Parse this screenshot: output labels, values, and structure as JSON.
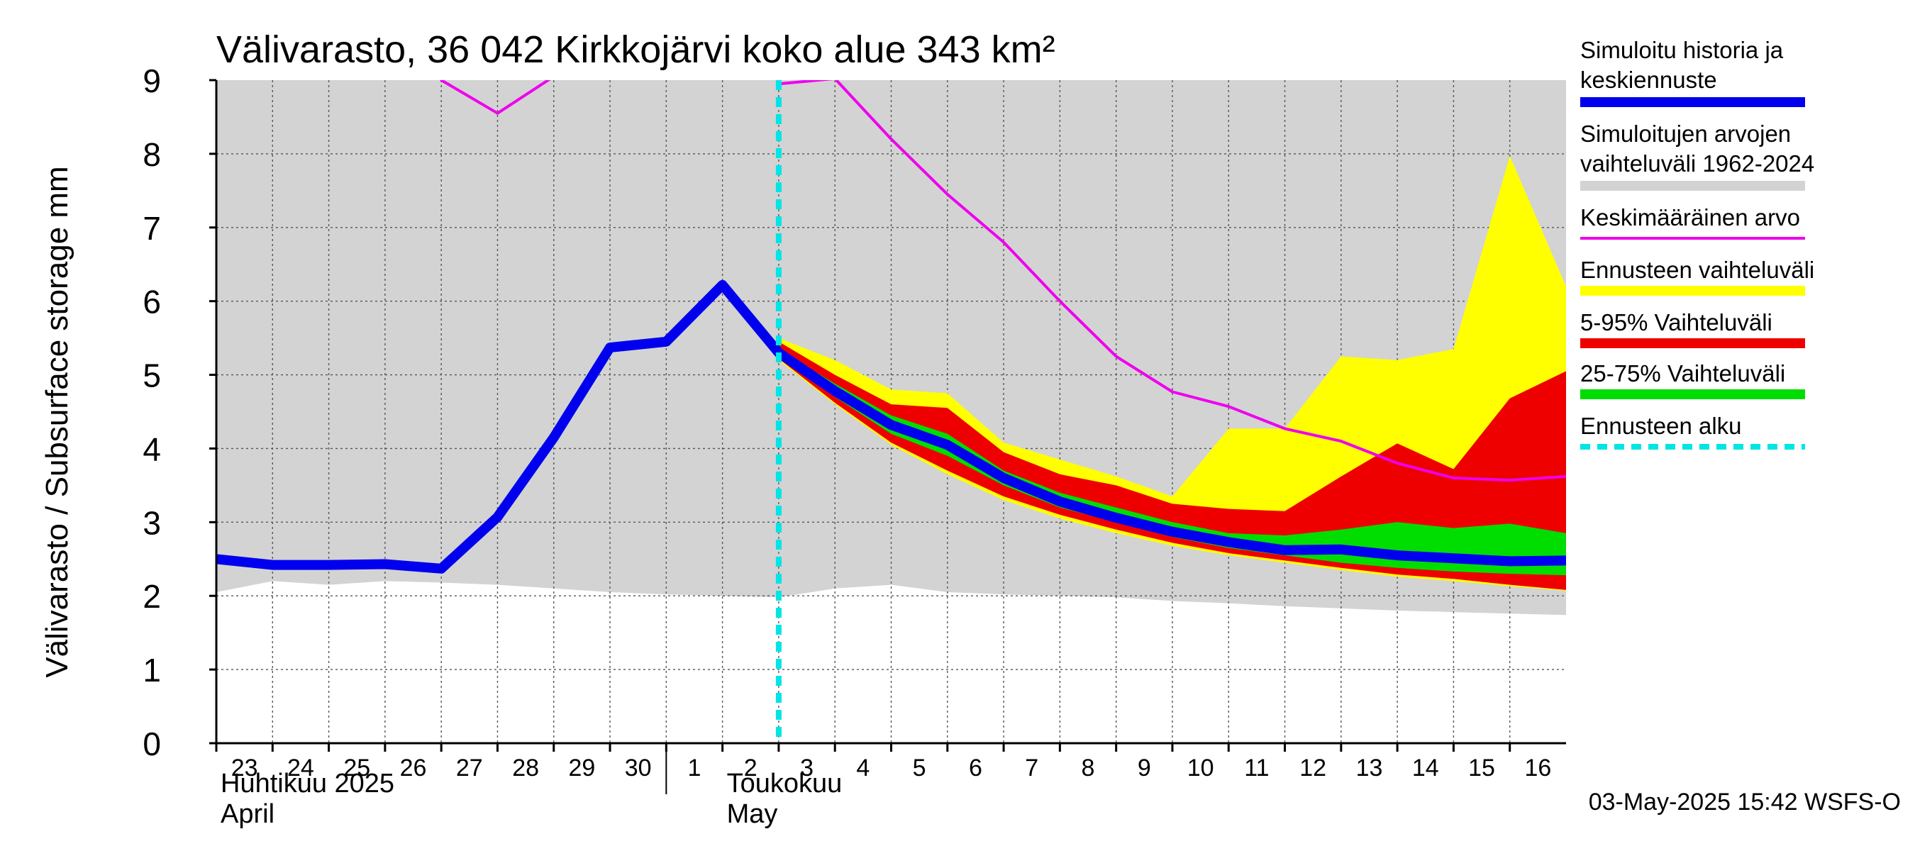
{
  "chart_data": {
    "type": "line",
    "title": "Välivarasto, 36 042 Kirkkojärvi koko alue 343 km²",
    "ylabel": "Välivarasto / Subsurface storage  mm",
    "ylim": [
      0,
      9
    ],
    "yticks": [
      "0",
      "1",
      "2",
      "3",
      "4",
      "5",
      "6",
      "7",
      "8",
      "9"
    ],
    "grid": true,
    "legend_position": "right",
    "xlim": [
      "2025-04-23",
      "2025-05-17"
    ],
    "x_tick_labels": [
      "23",
      "24",
      "25",
      "26",
      "27",
      "28",
      "29",
      "30",
      "1",
      "2",
      "3",
      "4",
      "5",
      "6",
      "7",
      "8",
      "9",
      "10",
      "11",
      "12",
      "13",
      "14",
      "15",
      "16"
    ],
    "x_tick_dates": [
      "2025-04-23",
      "2025-04-24",
      "2025-04-25",
      "2025-04-26",
      "2025-04-27",
      "2025-04-28",
      "2025-04-29",
      "2025-04-30",
      "2025-05-01",
      "2025-05-02",
      "2025-05-03",
      "2025-05-04",
      "2025-05-05",
      "2025-05-06",
      "2025-05-07",
      "2025-05-08",
      "2025-05-09",
      "2025-05-10",
      "2025-05-11",
      "2025-05-12",
      "2025-05-13",
      "2025-05-14",
      "2025-05-15",
      "2025-05-16"
    ],
    "month_labels": [
      {
        "fi": "Huhtikuu  2025",
        "en": "April",
        "start": "2025-04-23"
      },
      {
        "fi": "Toukokuu",
        "en": "May",
        "start": "2025-05-02"
      }
    ],
    "month_boundary": "2025-05-01",
    "forecast_start": "2025-05-03",
    "colors": {
      "historical_range": "#d3d3d3",
      "median": "#0000ee",
      "mean": "#ee00ee",
      "forecast_range": "#ffff00",
      "p5_95": "#ee0000",
      "p25_75": "#00dd00",
      "forecast_start": "#00e5e5"
    },
    "series": [
      {
        "name": "Simuloitu historia ja keskiennuste",
        "role": "median",
        "x": [
          "2025-04-23",
          "2025-04-24",
          "2025-04-25",
          "2025-04-26",
          "2025-04-27",
          "2025-04-28",
          "2025-04-29",
          "2025-04-30",
          "2025-05-01",
          "2025-05-02",
          "2025-05-03",
          "2025-05-04",
          "2025-05-05",
          "2025-05-06",
          "2025-05-07",
          "2025-05-08",
          "2025-05-09",
          "2025-05-10",
          "2025-05-11",
          "2025-05-12",
          "2025-05-13",
          "2025-05-14",
          "2025-05-15",
          "2025-05-16",
          "2025-05-17"
        ],
        "y": [
          2.5,
          2.42,
          2.42,
          2.43,
          2.37,
          3.07,
          4.15,
          5.37,
          5.45,
          6.22,
          5.3,
          4.78,
          4.32,
          4.05,
          3.6,
          3.28,
          3.06,
          2.87,
          2.73,
          2.62,
          2.63,
          2.55,
          2.51,
          2.47,
          2.48
        ]
      },
      {
        "name": "Simuloitujen arvojen vaihteluväli 1962-2024",
        "role": "historical_range",
        "x": [
          "2025-04-23",
          "2025-04-24",
          "2025-04-25",
          "2025-04-26",
          "2025-04-27",
          "2025-04-28",
          "2025-04-29",
          "2025-04-30",
          "2025-05-01",
          "2025-05-02",
          "2025-05-03",
          "2025-05-04",
          "2025-05-05",
          "2025-05-06",
          "2025-05-07",
          "2025-05-08",
          "2025-05-09",
          "2025-05-10",
          "2025-05-11",
          "2025-05-12",
          "2025-05-13",
          "2025-05-14",
          "2025-05-15",
          "2025-05-16",
          "2025-05-17"
        ],
        "low": [
          2.05,
          2.2,
          2.15,
          2.2,
          2.18,
          2.15,
          2.1,
          2.05,
          2.02,
          2.0,
          1.98,
          2.1,
          2.15,
          2.05,
          2.02,
          2.0,
          1.98,
          1.93,
          1.9,
          1.86,
          1.83,
          1.8,
          1.78,
          1.76,
          1.74
        ],
        "high": [
          9,
          9,
          9,
          9,
          9,
          9,
          9,
          9,
          9,
          9,
          9,
          9,
          9,
          9,
          9,
          9,
          9,
          9,
          9,
          9,
          9,
          9,
          9,
          9,
          9
        ]
      },
      {
        "name": "Keskimääräinen arvo",
        "role": "mean",
        "x": [
          "2025-04-27",
          "2025-04-28",
          "2025-04-29",
          "2025-05-03",
          "2025-05-04",
          "2025-05-05",
          "2025-05-06",
          "2025-05-07",
          "2025-05-08",
          "2025-05-09",
          "2025-05-10",
          "2025-05-11",
          "2025-05-12",
          "2025-05-13",
          "2025-05-14",
          "2025-05-15",
          "2025-05-16",
          "2025-05-17"
        ],
        "y": [
          9.0,
          8.55,
          9.05,
          8.95,
          9.02,
          8.2,
          7.45,
          6.8,
          6.0,
          5.25,
          4.77,
          4.57,
          4.27,
          4.1,
          3.8,
          3.6,
          3.57,
          3.62
        ]
      },
      {
        "name": "Ennusteen vaihteluväli",
        "role": "forecast_range",
        "x": [
          "2025-05-03",
          "2025-05-04",
          "2025-05-05",
          "2025-05-06",
          "2025-05-07",
          "2025-05-08",
          "2025-05-09",
          "2025-05-10",
          "2025-05-11",
          "2025-05-12",
          "2025-05-13",
          "2025-05-14",
          "2025-05-15",
          "2025-05-16",
          "2025-05-17"
        ],
        "low": [
          5.2,
          4.6,
          4.05,
          3.65,
          3.3,
          3.05,
          2.85,
          2.68,
          2.55,
          2.45,
          2.35,
          2.26,
          2.2,
          2.13,
          2.07
        ],
        "high": [
          5.5,
          5.2,
          4.8,
          4.75,
          4.08,
          3.85,
          3.62,
          3.35,
          4.27,
          4.27,
          5.25,
          5.2,
          5.35,
          7.97,
          6.2
        ]
      },
      {
        "name": "5-95% Vaihteluväli",
        "role": "p5_95",
        "x": [
          "2025-05-03",
          "2025-05-04",
          "2025-05-05",
          "2025-05-06",
          "2025-05-07",
          "2025-05-08",
          "2025-05-09",
          "2025-05-10",
          "2025-05-11",
          "2025-05-12",
          "2025-05-13",
          "2025-05-14",
          "2025-05-15",
          "2025-05-16",
          "2025-05-17"
        ],
        "low": [
          5.22,
          4.62,
          4.08,
          3.7,
          3.35,
          3.1,
          2.9,
          2.72,
          2.58,
          2.48,
          2.38,
          2.29,
          2.23,
          2.15,
          2.08
        ],
        "high": [
          5.45,
          5.0,
          4.6,
          4.55,
          3.95,
          3.65,
          3.5,
          3.25,
          3.18,
          3.15,
          3.62,
          4.07,
          3.72,
          4.68,
          5.05
        ]
      },
      {
        "name": "25-75% Vaihteluväli",
        "role": "p25_75",
        "x": [
          "2025-05-03",
          "2025-05-04",
          "2025-05-05",
          "2025-05-06",
          "2025-05-07",
          "2025-05-08",
          "2025-05-09",
          "2025-05-10",
          "2025-05-11",
          "2025-05-12",
          "2025-05-13",
          "2025-05-14",
          "2025-05-15",
          "2025-05-16",
          "2025-05-17"
        ],
        "low": [
          5.25,
          4.7,
          4.2,
          3.9,
          3.5,
          3.2,
          3.0,
          2.8,
          2.65,
          2.55,
          2.45,
          2.38,
          2.33,
          2.3,
          2.28
        ],
        "high": [
          5.35,
          4.88,
          4.45,
          4.2,
          3.7,
          3.4,
          3.2,
          3.0,
          2.85,
          2.82,
          2.9,
          3.0,
          2.92,
          2.98,
          2.85
        ]
      }
    ],
    "legend": [
      {
        "label": "Simuloitu historia ja keskiennuste",
        "role": "median"
      },
      {
        "label": "Simuloitujen arvojen vaihteluväli 1962-2024",
        "role": "historical_range"
      },
      {
        "label": "Keskimääräinen arvo",
        "role": "mean"
      },
      {
        "label": "Ennusteen vaihteluväli",
        "role": "forecast_range"
      },
      {
        "label": "5-95% Vaihteluväli",
        "role": "p5_95"
      },
      {
        "label": "25-75% Vaihteluväli",
        "role": "p25_75"
      },
      {
        "label": "Ennusteen alku",
        "role": "forecast_start"
      }
    ],
    "timestamp": "03-May-2025 15:42 WSFS-O"
  }
}
